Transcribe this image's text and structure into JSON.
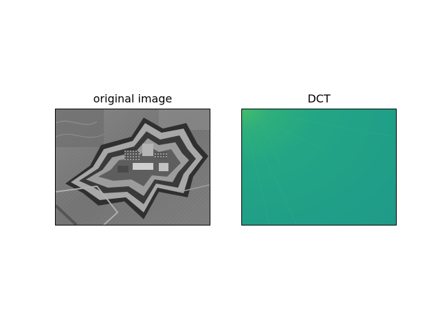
{
  "figure": {
    "panels": [
      {
        "title": "original image",
        "content": "grayscale aerial photograph of a star-shaped fortress"
      },
      {
        "title": "DCT",
        "content": "DCT coefficient map, teal-green colormap"
      }
    ]
  },
  "colors": {
    "background": "#ffffff",
    "axes_border": "#000000",
    "dct_base": "#1f9e89",
    "dct_corner": "#3bb873",
    "photo_mid": "#7a7a7a"
  }
}
